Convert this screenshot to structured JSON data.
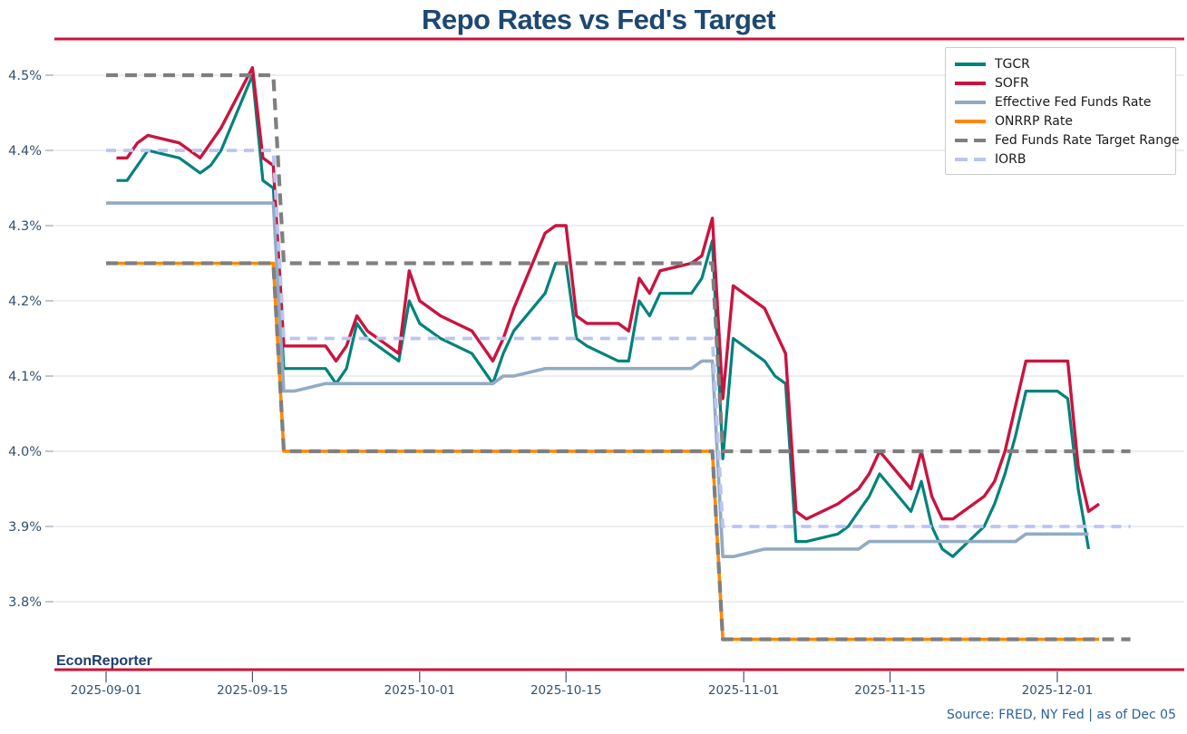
{
  "title": "Repo Rates vs Fed's Target",
  "watermark": "EconReporter",
  "source_note": "Source: FRED, NY Fed | as of Dec 05",
  "colors": {
    "title_text": "#1d4872",
    "tick_text": "#33516d",
    "watermark_text": "#1d3d6e",
    "source_text": "#2d6095",
    "accent_rule": "#cf1237",
    "gridline": "#d9dce0",
    "tgcr": "#00827b",
    "sofr": "#c9143f",
    "effr": "#92abc4",
    "onrrp": "#ff8800",
    "target_range": "#7f7f7f",
    "iorb": "#bcc4f2"
  },
  "legend": [
    {
      "label": "TGCR",
      "color": "#00827b",
      "dashed": false
    },
    {
      "label": "SOFR",
      "color": "#c9143f",
      "dashed": false
    },
    {
      "label": "Effective Fed Funds Rate",
      "color": "#92abc4",
      "dashed": false
    },
    {
      "label": "ONRRP Rate",
      "color": "#ff8800",
      "dashed": false
    },
    {
      "label": "Fed Funds Rate Target Range",
      "color": "#7f7f7f",
      "dashed": true
    },
    {
      "label": "IORB",
      "color": "#bcc4f2",
      "dashed": true
    }
  ],
  "chart_data": {
    "type": "line",
    "title": "Repo Rates vs Fed's Target",
    "xlabel": "",
    "ylabel": "",
    "grid": "horizontal",
    "legend_position": "top-right",
    "ylim": [
      3.706,
      4.542
    ],
    "y_ticks": [
      {
        "label": "4.5%",
        "value": 4.5
      },
      {
        "label": "4.4%",
        "value": 4.4
      },
      {
        "label": "4.3%",
        "value": 4.3
      },
      {
        "label": "4.2%",
        "value": 4.2
      },
      {
        "label": "4.1%",
        "value": 4.1
      },
      {
        "label": "4.0%",
        "value": 4.0
      },
      {
        "label": "3.9%",
        "value": 3.9
      },
      {
        "label": "3.8%",
        "value": 3.8
      }
    ],
    "x_ticks": [
      {
        "label": "2025-09-01",
        "date": "2025-09-01"
      },
      {
        "label": "2025-09-15",
        "date": "2025-09-15"
      },
      {
        "label": "2025-10-01",
        "date": "2025-10-01"
      },
      {
        "label": "2025-10-15",
        "date": "2025-10-15"
      },
      {
        "label": "2025-11-01",
        "date": "2025-11-01"
      },
      {
        "label": "2025-11-15",
        "date": "2025-11-15"
      },
      {
        "label": "2025-12-01",
        "date": "2025-12-01"
      }
    ],
    "dates": [
      "2025-09-01",
      "2025-09-02",
      "2025-09-03",
      "2025-09-04",
      "2025-09-05",
      "2025-09-08",
      "2025-09-09",
      "2025-09-10",
      "2025-09-11",
      "2025-09-12",
      "2025-09-15",
      "2025-09-16",
      "2025-09-17",
      "2025-09-18",
      "2025-09-19",
      "2025-09-22",
      "2025-09-23",
      "2025-09-24",
      "2025-09-25",
      "2025-09-26",
      "2025-09-29",
      "2025-09-30",
      "2025-10-01",
      "2025-10-02",
      "2025-10-03",
      "2025-10-06",
      "2025-10-07",
      "2025-10-08",
      "2025-10-09",
      "2025-10-10",
      "2025-10-13",
      "2025-10-14",
      "2025-10-15",
      "2025-10-16",
      "2025-10-17",
      "2025-10-20",
      "2025-10-21",
      "2025-10-22",
      "2025-10-23",
      "2025-10-24",
      "2025-10-27",
      "2025-10-28",
      "2025-10-29",
      "2025-10-30",
      "2025-10-31",
      "2025-11-03",
      "2025-11-04",
      "2025-11-05",
      "2025-11-06",
      "2025-11-07",
      "2025-11-10",
      "2025-11-11",
      "2025-11-12",
      "2025-11-13",
      "2025-11-14",
      "2025-11-17",
      "2025-11-18",
      "2025-11-19",
      "2025-11-20",
      "2025-11-21",
      "2025-11-24",
      "2025-11-25",
      "2025-11-26",
      "2025-11-27",
      "2025-11-28",
      "2025-12-01",
      "2025-12-02",
      "2025-12-03",
      "2025-12-04",
      "2025-12-05",
      "2025-12-08"
    ],
    "series": [
      {
        "name": "TGCR",
        "color": "#00827b",
        "width": 3.2,
        "dash": null,
        "values": [
          null,
          4.36,
          4.36,
          4.38,
          4.4,
          4.39,
          4.38,
          4.37,
          4.38,
          4.4,
          4.5,
          4.36,
          4.35,
          4.11,
          4.11,
          4.11,
          4.09,
          4.11,
          4.17,
          4.15,
          4.12,
          4.2,
          4.17,
          4.16,
          4.15,
          4.13,
          4.11,
          4.09,
          4.13,
          4.16,
          4.21,
          4.25,
          4.25,
          4.15,
          4.14,
          4.12,
          4.12,
          4.2,
          4.18,
          4.21,
          4.21,
          4.23,
          4.28,
          3.99,
          4.15,
          4.12,
          4.1,
          4.09,
          3.88,
          3.88,
          3.89,
          3.9,
          3.92,
          3.94,
          3.97,
          3.92,
          3.96,
          3.9,
          3.87,
          3.86,
          3.9,
          3.93,
          3.97,
          4.02,
          4.08,
          4.08,
          4.07,
          3.95,
          3.87,
          null,
          null
        ]
      },
      {
        "name": "SOFR",
        "color": "#c9143f",
        "width": 3.4,
        "dash": null,
        "values": [
          null,
          4.39,
          4.39,
          4.41,
          4.42,
          4.41,
          4.4,
          4.39,
          4.41,
          4.43,
          4.51,
          4.39,
          4.38,
          4.14,
          4.14,
          4.14,
          4.12,
          4.14,
          4.18,
          4.16,
          4.13,
          4.24,
          4.2,
          4.19,
          4.18,
          4.16,
          4.14,
          4.12,
          4.15,
          4.19,
          4.29,
          4.3,
          4.3,
          4.18,
          4.17,
          4.17,
          4.16,
          4.23,
          4.21,
          4.24,
          4.25,
          4.26,
          4.31,
          4.07,
          4.22,
          4.19,
          4.16,
          4.13,
          3.92,
          3.91,
          3.93,
          3.94,
          3.95,
          3.97,
          4.0,
          3.95,
          4.0,
          3.94,
          3.91,
          3.91,
          3.94,
          3.96,
          4.0,
          4.06,
          4.12,
          4.12,
          4.12,
          3.98,
          3.92,
          3.93,
          null
        ]
      },
      {
        "name": "Effective Fed Funds Rate",
        "color": "#92abc4",
        "width": 3.6,
        "dash": null,
        "values": [
          4.33,
          4.33,
          4.33,
          4.33,
          4.33,
          4.33,
          4.33,
          4.33,
          4.33,
          4.33,
          4.33,
          4.33,
          4.33,
          4.08,
          4.08,
          4.09,
          4.09,
          4.09,
          4.09,
          4.09,
          4.09,
          4.09,
          4.09,
          4.09,
          4.09,
          4.09,
          4.09,
          4.09,
          4.1,
          4.1,
          4.11,
          4.11,
          4.11,
          4.11,
          4.11,
          4.11,
          4.11,
          4.11,
          4.11,
          4.11,
          4.11,
          4.12,
          4.12,
          3.86,
          3.86,
          3.87,
          3.87,
          3.87,
          3.87,
          3.87,
          3.87,
          3.87,
          3.87,
          3.88,
          3.88,
          3.88,
          3.88,
          3.88,
          3.88,
          3.88,
          3.88,
          3.88,
          3.88,
          3.88,
          3.89,
          3.89,
          3.89,
          3.89,
          3.89,
          null,
          null
        ]
      },
      {
        "name": "ONRRP Rate",
        "color": "#ff8800",
        "width": 3.6,
        "dash": null,
        "values": [
          4.25,
          4.25,
          4.25,
          4.25,
          4.25,
          4.25,
          4.25,
          4.25,
          4.25,
          4.25,
          4.25,
          4.25,
          4.25,
          4.0,
          4.0,
          4.0,
          4.0,
          4.0,
          4.0,
          4.0,
          4.0,
          4.0,
          4.0,
          4.0,
          4.0,
          4.0,
          4.0,
          4.0,
          4.0,
          4.0,
          4.0,
          4.0,
          4.0,
          4.0,
          4.0,
          4.0,
          4.0,
          4.0,
          4.0,
          4.0,
          4.0,
          4.0,
          4.0,
          3.75,
          3.75,
          3.75,
          3.75,
          3.75,
          3.75,
          3.75,
          3.75,
          3.75,
          3.75,
          3.75,
          3.75,
          3.75,
          3.75,
          3.75,
          3.75,
          3.75,
          3.75,
          3.75,
          3.75,
          3.75,
          3.75,
          3.75,
          3.75,
          3.75,
          3.75,
          3.75,
          null
        ]
      },
      {
        "name": "Fed Funds Target Upper",
        "color": "#7f7f7f",
        "width": 4.2,
        "dash": [
          13,
          8
        ],
        "values": [
          4.5,
          4.5,
          4.5,
          4.5,
          4.5,
          4.5,
          4.5,
          4.5,
          4.5,
          4.5,
          4.5,
          4.5,
          4.5,
          4.25,
          4.25,
          4.25,
          4.25,
          4.25,
          4.25,
          4.25,
          4.25,
          4.25,
          4.25,
          4.25,
          4.25,
          4.25,
          4.25,
          4.25,
          4.25,
          4.25,
          4.25,
          4.25,
          4.25,
          4.25,
          4.25,
          4.25,
          4.25,
          4.25,
          4.25,
          4.25,
          4.25,
          4.25,
          4.25,
          4.0,
          4.0,
          4.0,
          4.0,
          4.0,
          4.0,
          4.0,
          4.0,
          4.0,
          4.0,
          4.0,
          4.0,
          4.0,
          4.0,
          4.0,
          4.0,
          4.0,
          4.0,
          4.0,
          4.0,
          4.0,
          4.0,
          4.0,
          4.0,
          4.0,
          4.0,
          4.0,
          4.0
        ]
      },
      {
        "name": "Fed Funds Target Lower",
        "color": "#7f7f7f",
        "width": 4.2,
        "dash": [
          13,
          8
        ],
        "values": [
          4.25,
          4.25,
          4.25,
          4.25,
          4.25,
          4.25,
          4.25,
          4.25,
          4.25,
          4.25,
          4.25,
          4.25,
          4.25,
          4.0,
          4.0,
          4.0,
          4.0,
          4.0,
          4.0,
          4.0,
          4.0,
          4.0,
          4.0,
          4.0,
          4.0,
          4.0,
          4.0,
          4.0,
          4.0,
          4.0,
          4.0,
          4.0,
          4.0,
          4.0,
          4.0,
          4.0,
          4.0,
          4.0,
          4.0,
          4.0,
          4.0,
          4.0,
          4.0,
          3.75,
          3.75,
          3.75,
          3.75,
          3.75,
          3.75,
          3.75,
          3.75,
          3.75,
          3.75,
          3.75,
          3.75,
          3.75,
          3.75,
          3.75,
          3.75,
          3.75,
          3.75,
          3.75,
          3.75,
          3.75,
          3.75,
          3.75,
          3.75,
          3.75,
          3.75,
          3.75,
          3.75
        ]
      },
      {
        "name": "IORB",
        "color": "#bcc4f2",
        "width": 3.8,
        "dash": [
          11,
          8
        ],
        "values": [
          4.4,
          4.4,
          4.4,
          4.4,
          4.4,
          4.4,
          4.4,
          4.4,
          4.4,
          4.4,
          4.4,
          4.4,
          4.4,
          4.15,
          4.15,
          4.15,
          4.15,
          4.15,
          4.15,
          4.15,
          4.15,
          4.15,
          4.15,
          4.15,
          4.15,
          4.15,
          4.15,
          4.15,
          4.15,
          4.15,
          4.15,
          4.15,
          4.15,
          4.15,
          4.15,
          4.15,
          4.15,
          4.15,
          4.15,
          4.15,
          4.15,
          4.15,
          4.15,
          3.9,
          3.9,
          3.9,
          3.9,
          3.9,
          3.9,
          3.9,
          3.9,
          3.9,
          3.9,
          3.9,
          3.9,
          3.9,
          3.9,
          3.9,
          3.9,
          3.9,
          3.9,
          3.9,
          3.9,
          3.9,
          3.9,
          3.9,
          3.9,
          3.9,
          3.9,
          3.9,
          3.9
        ]
      }
    ]
  }
}
